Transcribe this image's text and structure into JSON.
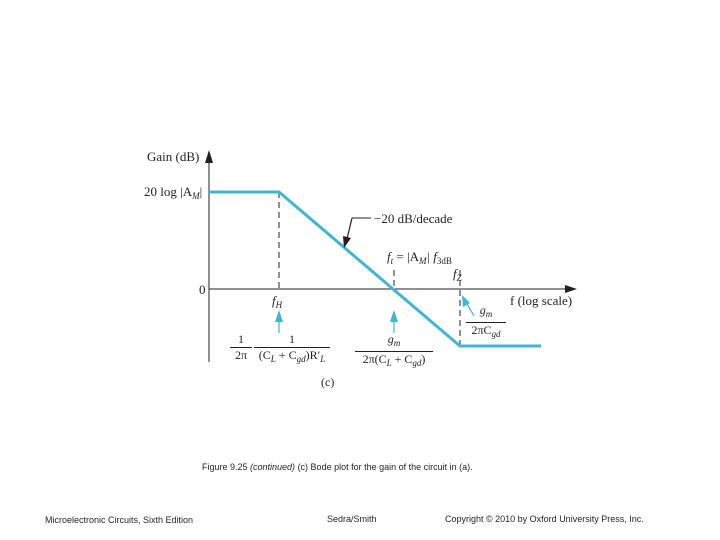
{
  "diagram": {
    "y_axis_label": "Gain (dB)",
    "mid_band_gain_label": "20 log |A",
    "mid_band_gain_sub": "M",
    "mid_band_gain_close": "|",
    "zero_label": "0",
    "x_axis_label": "f (log scale)",
    "slope_label": "−20 dB/decade",
    "ft_label": "f",
    "ft_sub": "t",
    "ft_eq": " = |A",
    "ft_eq_sub": "M",
    "ft_eq_close": "| f",
    "ft_eq_sub2": "3dB",
    "fz_label": "f",
    "fz_sub": "Z",
    "fh_label": "f",
    "fh_sub": "H",
    "part_label": "(c)",
    "expr_fh": {
      "frac1_num": "1",
      "frac1_den": "2π",
      "frac2_num": "1",
      "frac2_den": "(C",
      "frac2_den_sub1": "L",
      "frac2_den_mid": " + C",
      "frac2_den_sub2": "gd",
      "frac2_den_end": ")R′",
      "frac2_den_sub3": "L"
    },
    "expr_ft": {
      "num": "g",
      "num_sub": "m",
      "den": "2π(C",
      "den_sub1": "L",
      "den_mid": " + C",
      "den_sub2": "gd",
      "den_end": ")"
    },
    "expr_fz": {
      "num": "g",
      "num_sub": "m",
      "den": "2πC",
      "den_sub": "gd"
    },
    "line_color": "#3fb6d8"
  },
  "caption": {
    "prefix": "Figure 9.25 ",
    "italic": "(continued)",
    "suffix": " (c) Bode plot for the gain of the circuit in (a)."
  },
  "footer": {
    "left": "Microelectronic Circuits, Sixth Edition",
    "center": "Sedra/Smith",
    "right": "Copyright © 2010 by Oxford University Press, Inc."
  }
}
